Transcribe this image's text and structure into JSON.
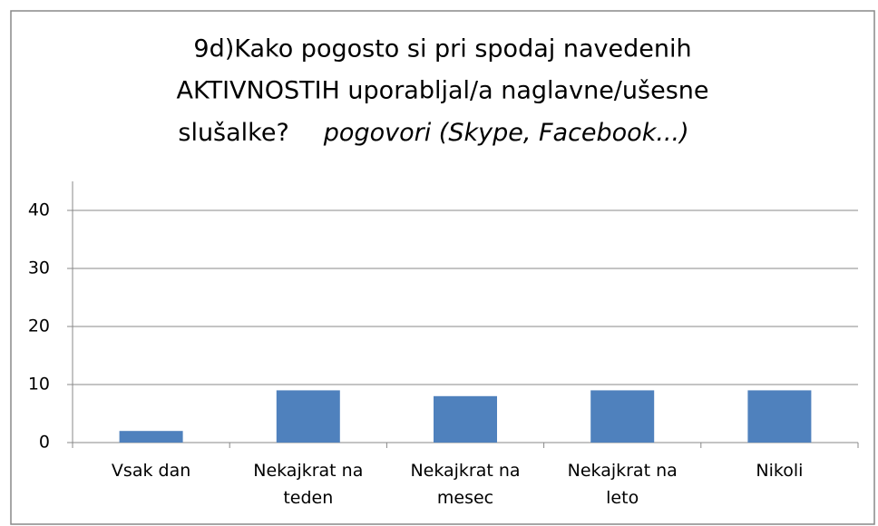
{
  "chart_data": {
    "type": "bar",
    "title": [
      "9d)Kako pogosto si pri spodaj navedenih",
      "AKTIVNOSTIH uporabljal/a naglavne/ušesne",
      "slušalke?"
    ],
    "subtitle": "pogovori (Skype, Facebook...)",
    "categories": [
      "Vsak dan",
      "Nekajkrat na teden",
      "Nekajkrat na mesec",
      "Nekajkrat na leto",
      "Nikoli"
    ],
    "values": [
      2,
      9,
      8,
      9,
      9
    ],
    "color": "#4f81bd",
    "ylim": [
      0,
      45
    ],
    "yticks": [
      0,
      10,
      20,
      30,
      40
    ],
    "grid": true
  }
}
